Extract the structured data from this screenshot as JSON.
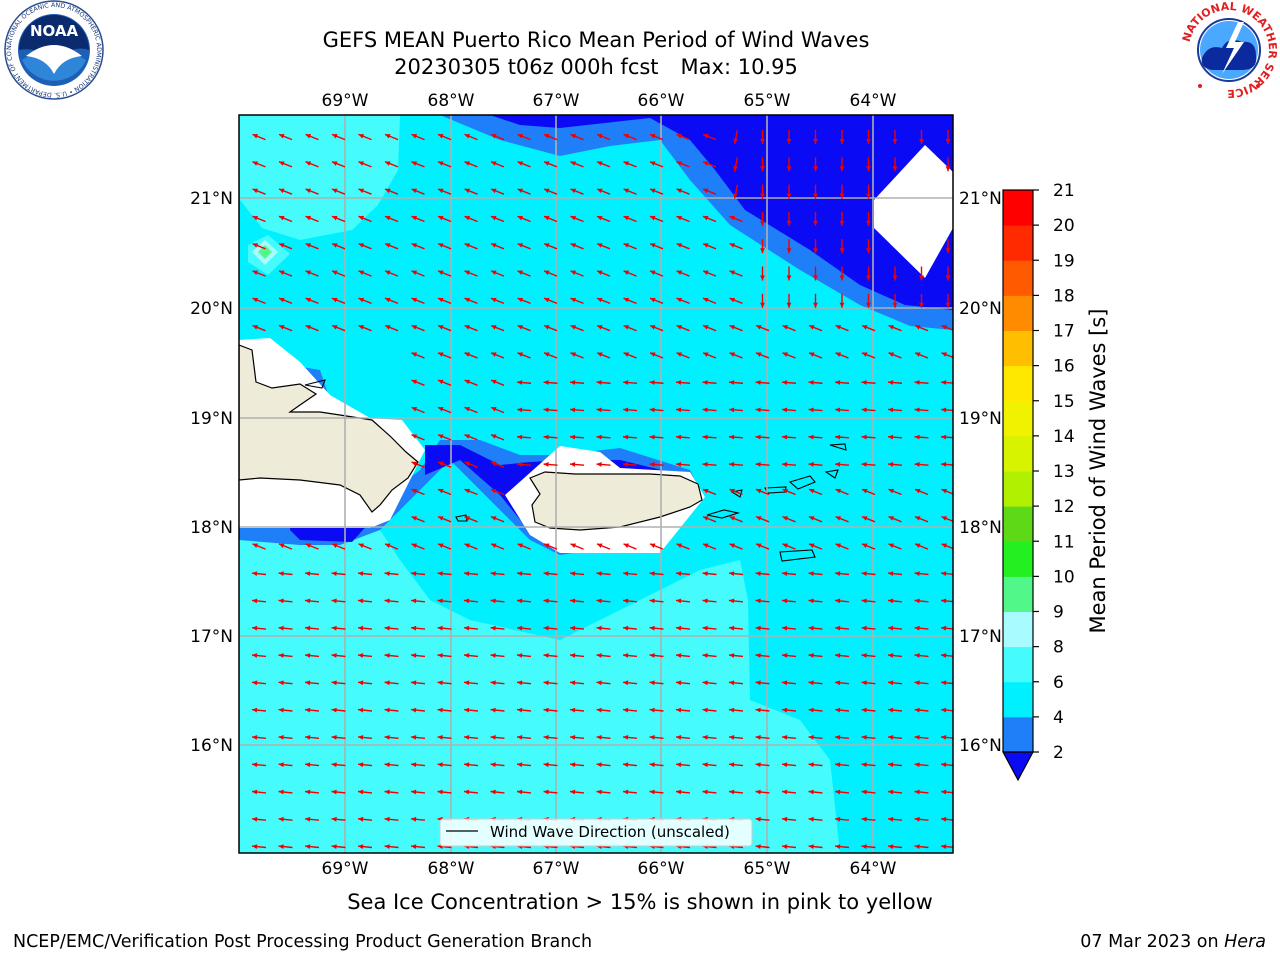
{
  "title_line1": "GEFS MEAN Puerto Rico Mean Period of Wind Waves",
  "title_date": "20230305 t06z 000h fcst",
  "title_max": "Max: 10.95",
  "longitude_ticks": [
    "69°W",
    "68°W",
    "67°W",
    "66°W",
    "65°W",
    "64°W"
  ],
  "latitude_ticks": [
    "21°N",
    "20°N",
    "19°N",
    "18°N",
    "17°N",
    "16°N"
  ],
  "legend_label": "Wind Wave Direction (unscaled)",
  "colorbar": {
    "label": "Mean Period of Wind Waves [s]",
    "ticks": [
      "2",
      "4",
      "6",
      "8",
      "9",
      "10",
      "11",
      "12",
      "13",
      "14",
      "15",
      "16",
      "17",
      "18",
      "19",
      "20",
      "21"
    ],
    "colors": [
      "#0a0af5",
      "#1f7ff8",
      "#00f0ff",
      "#45fbfb",
      "#a8fcff",
      "#52f78a",
      "#22f020",
      "#5ed918",
      "#b0f000",
      "#d8f300",
      "#f0f200",
      "#ffe800",
      "#ffbe00",
      "#ff8c00",
      "#ff5a00",
      "#ff2a00",
      "#ff0000"
    ],
    "extend_color": "#0a0af5"
  },
  "sea_ice_note": "Sea Ice Concentration > 15% is shown in pink to yellow",
  "footer_org": "NCEP/EMC/Verification Post Processing Product Generation Branch",
  "footer_date": "07 Mar 2023 on",
  "footer_host": "Hera",
  "logo_left_text": "NOAA",
  "logo_left_ring": "NATIONAL OCEANIC AND ATMOSPHERIC ADMINISTRATION • U.S. DEPARTMENT OF COMMERCE",
  "logo_right_ring": "NATIONAL WEATHER SERVICE"
}
